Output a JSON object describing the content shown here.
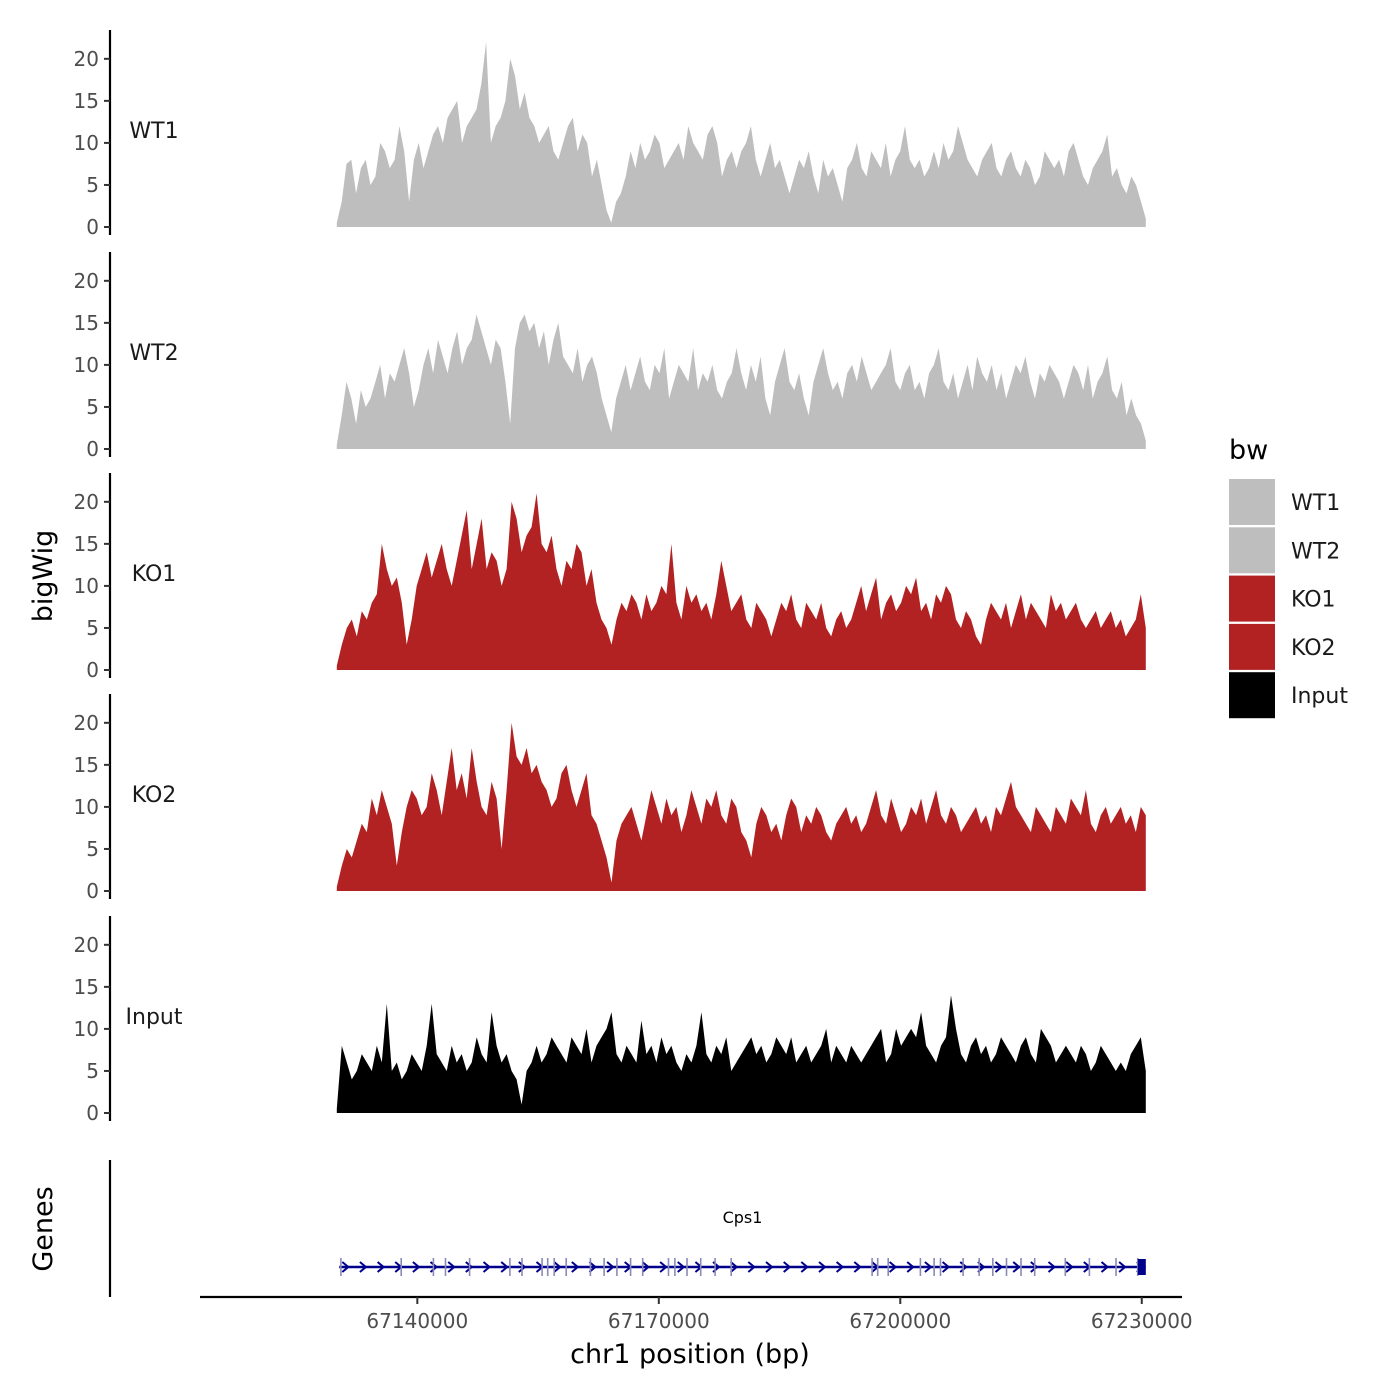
{
  "chart_data": {
    "type": "area",
    "ylabel": "bigWig",
    "xlabel": "chr1 position (bp)",
    "ylim": [
      0,
      22
    ],
    "y_ticks": [
      0,
      5,
      10,
      15,
      20
    ],
    "xlim": [
      67113000,
      67235000
    ],
    "x_ticks": [
      67140000,
      67170000,
      67200000,
      67230000
    ],
    "x_tick_labels": [
      "67140000",
      "67170000",
      "67200000",
      "67230000"
    ],
    "data_range": [
      67130000,
      67230500
    ],
    "legend": {
      "title": "bw",
      "position": "right",
      "entries": [
        {
          "label": "WT1",
          "color": "#bebebe"
        },
        {
          "label": "WT2",
          "color": "#bebebe"
        },
        {
          "label": "KO1",
          "color": "#b22222"
        },
        {
          "label": "KO2",
          "color": "#b22222"
        },
        {
          "label": "Input",
          "color": "#000000"
        }
      ]
    },
    "series": [
      {
        "name": "WT1",
        "color": "#bebebe",
        "values": [
          0.5,
          3,
          7.5,
          8,
          4,
          7,
          8,
          5,
          6,
          10,
          9,
          7,
          8,
          12,
          9,
          3,
          8,
          10,
          7,
          9,
          11,
          12,
          10,
          13,
          14,
          15,
          10,
          12,
          13,
          14,
          17,
          22,
          10,
          12,
          13,
          15,
          20,
          18,
          14,
          16,
          13,
          12,
          10,
          11,
          12,
          9,
          8,
          10,
          12,
          13,
          9,
          11,
          10,
          6,
          8,
          5,
          2,
          0.5,
          3,
          4,
          6,
          9,
          7,
          10,
          8,
          9,
          11,
          10,
          7,
          8,
          9,
          10,
          8,
          12,
          10,
          9,
          8,
          11,
          12,
          10,
          6,
          8,
          9,
          7,
          9,
          10,
          12,
          8,
          6,
          8,
          10,
          7,
          8,
          6,
          4,
          6,
          8,
          7,
          9,
          6,
          4,
          8,
          6,
          7,
          5,
          3,
          7,
          8,
          10,
          7,
          6,
          9,
          8,
          7,
          10,
          6,
          8,
          9,
          12,
          8,
          7,
          8,
          6,
          7,
          9,
          7,
          10,
          8,
          9,
          12,
          10,
          8,
          7,
          6,
          8,
          9,
          10,
          7,
          6,
          8,
          9,
          7,
          6,
          8,
          7,
          5,
          6,
          9,
          8,
          7,
          8,
          6,
          9,
          10,
          8,
          6,
          5,
          7,
          8,
          9,
          11,
          6,
          7,
          5,
          4,
          6,
          5,
          3,
          1
        ]
      },
      {
        "name": "WT2",
        "color": "#bebebe",
        "values": [
          0.5,
          4,
          8,
          6,
          3,
          7,
          5,
          6,
          8,
          10,
          6,
          9,
          8,
          10,
          12,
          9,
          5,
          7,
          10,
          12,
          9,
          13,
          11,
          9,
          12,
          14,
          10,
          12,
          13,
          16,
          14,
          12,
          10,
          13,
          12,
          8,
          3,
          12,
          15,
          16,
          14,
          15,
          12,
          14,
          10,
          13,
          15,
          11,
          10,
          9,
          12,
          8,
          10,
          11,
          9,
          6,
          4,
          2,
          6,
          8,
          10,
          7,
          9,
          11,
          8,
          7,
          10,
          9,
          12,
          6,
          8,
          10,
          9,
          8,
          12,
          7,
          9,
          8,
          10,
          7,
          6,
          8,
          9,
          12,
          9,
          7,
          10,
          8,
          11,
          6,
          4,
          8,
          10,
          12,
          8,
          7,
          9,
          6,
          4,
          8,
          10,
          12,
          9,
          7,
          8,
          6,
          9,
          10,
          8,
          11,
          9,
          7,
          8,
          9,
          10,
          12,
          8,
          7,
          9,
          10,
          7,
          8,
          6,
          9,
          10,
          12,
          8,
          7,
          9,
          6,
          8,
          10,
          7,
          11,
          9,
          8,
          10,
          7,
          9,
          6,
          8,
          10,
          9,
          11,
          8,
          6,
          9,
          8,
          10,
          9,
          8,
          6,
          8,
          10,
          9,
          7,
          10,
          6,
          8,
          9,
          11,
          7,
          6,
          8,
          4,
          6,
          4,
          3,
          1
        ]
      },
      {
        "name": "KO1",
        "color": "#b22222",
        "values": [
          0.5,
          3,
          5,
          6,
          4,
          7,
          6,
          8,
          9,
          15,
          12,
          10,
          11,
          8,
          3,
          6,
          10,
          12,
          14,
          11,
          13,
          15,
          12,
          10,
          13,
          16,
          19,
          12,
          15,
          18,
          12,
          14,
          13,
          10,
          12,
          20,
          18,
          14,
          16,
          17,
          21,
          15,
          14,
          16,
          12,
          10,
          13,
          12,
          15,
          14,
          10,
          12,
          8,
          6,
          5,
          3,
          6,
          8,
          7,
          9,
          8,
          6,
          9,
          7,
          8,
          10,
          9,
          15,
          8,
          6,
          10,
          8,
          9,
          7,
          8,
          6,
          9,
          13,
          10,
          7,
          8,
          9,
          6,
          5,
          8,
          7,
          6,
          4,
          6,
          8,
          7,
          9,
          6,
          5,
          8,
          7,
          6,
          8,
          5,
          4,
          6,
          7,
          5,
          6,
          8,
          10,
          7,
          9,
          11,
          6,
          8,
          9,
          7,
          8,
          10,
          9,
          11,
          7,
          8,
          6,
          9,
          8,
          10,
          9,
          6,
          5,
          7,
          6,
          4,
          3,
          6,
          8,
          7,
          6,
          8,
          5,
          7,
          9,
          6,
          8,
          7,
          6,
          5,
          9,
          7,
          8,
          6,
          7,
          8,
          6,
          5,
          6,
          7,
          5,
          6,
          7,
          5,
          6,
          4,
          5,
          6,
          9,
          5
        ]
      },
      {
        "name": "KO2",
        "color": "#b22222",
        "values": [
          0.5,
          3,
          5,
          4,
          6,
          8,
          7,
          11,
          9,
          12,
          10,
          8,
          3,
          7,
          10,
          12,
          11,
          9,
          10,
          14,
          12,
          9,
          13,
          17,
          12,
          14,
          11,
          17,
          13,
          10,
          9,
          13,
          11,
          5,
          12,
          20,
          16,
          15,
          17,
          14,
          15,
          13,
          12,
          10,
          11,
          14,
          15,
          12,
          10,
          12,
          14,
          9,
          8,
          6,
          4,
          1,
          6,
          8,
          9,
          10,
          8,
          6,
          9,
          12,
          10,
          8,
          11,
          9,
          10,
          7,
          9,
          12,
          10,
          8,
          11,
          10,
          12,
          9,
          8,
          11,
          10,
          7,
          6,
          4,
          8,
          10,
          9,
          7,
          8,
          6,
          9,
          11,
          10,
          7,
          9,
          8,
          10,
          9,
          7,
          6,
          8,
          9,
          10,
          8,
          9,
          7,
          8,
          10,
          12,
          9,
          8,
          11,
          9,
          7,
          8,
          10,
          9,
          11,
          8,
          10,
          12,
          9,
          8,
          10,
          9,
          7,
          8,
          9,
          10,
          8,
          9,
          7,
          10,
          9,
          11,
          13,
          10,
          9,
          8,
          7,
          10,
          9,
          8,
          7,
          10,
          9,
          8,
          11,
          10,
          9,
          12,
          8,
          7,
          9,
          10,
          8,
          9,
          10,
          8,
          9,
          7,
          10,
          9
        ]
      },
      {
        "name": "Input",
        "color": "#000000",
        "values": [
          0.5,
          8,
          6,
          4,
          5,
          7,
          6,
          5,
          8,
          6,
          13,
          5,
          6,
          4,
          5,
          7,
          6,
          5,
          8,
          13,
          7,
          6,
          5,
          8,
          6,
          7,
          5,
          6,
          9,
          7,
          6,
          12,
          8,
          6,
          7,
          5,
          4,
          1,
          5,
          6,
          8,
          6,
          7,
          9,
          8,
          7,
          6,
          9,
          8,
          7,
          10,
          6,
          8,
          9,
          10,
          12,
          7,
          6,
          8,
          7,
          6,
          11,
          7,
          8,
          6,
          9,
          7,
          8,
          6,
          5,
          7,
          6,
          8,
          12,
          7,
          6,
          8,
          7,
          9,
          5,
          6,
          7,
          8,
          9,
          7,
          8,
          6,
          7,
          9,
          8,
          7,
          9,
          6,
          7,
          8,
          6,
          7,
          8,
          10,
          6,
          8,
          7,
          6,
          8,
          7,
          6,
          7,
          8,
          9,
          10,
          6,
          7,
          10,
          8,
          9,
          10,
          9,
          12,
          8,
          7,
          6,
          8,
          9,
          14,
          10,
          7,
          6,
          8,
          9,
          7,
          8,
          6,
          7,
          9,
          8,
          7,
          6,
          8,
          9,
          7,
          6,
          10,
          9,
          8,
          6,
          7,
          8,
          7,
          6,
          8,
          7,
          5,
          6,
          8,
          7,
          6,
          5,
          6,
          5,
          7,
          8,
          9,
          5
        ]
      }
    ],
    "gene_track": {
      "title": "Genes",
      "gene": "Cps1",
      "color": "#00008b",
      "start": 67130300,
      "end": 67230500,
      "strand": "+",
      "exons": [
        67130500,
        67138000,
        67142000,
        67143500,
        67146500,
        67151500,
        67153000,
        67155500,
        67156200,
        67157000,
        67158500,
        67161500,
        67163200,
        67164800,
        67166500,
        67168000,
        67171200,
        67172000,
        67173500,
        67175200,
        67177000,
        67179000,
        67196500,
        67197200,
        67198500,
        67202500,
        67204200,
        67205000,
        67207800,
        67209800,
        67211500,
        67213200,
        67215000,
        67216700,
        67220500,
        67223500,
        67226800,
        67229500,
        67230000
      ]
    }
  }
}
